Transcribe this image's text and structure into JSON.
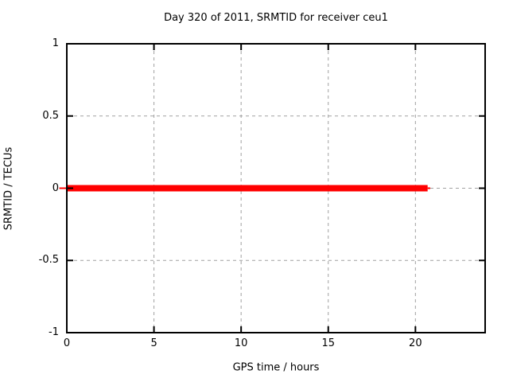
{
  "chart_data": {
    "type": "line",
    "title": "Day 320 of 2011, SRMTID for receiver ceu1",
    "xlabel": "GPS time / hours",
    "ylabel": "SRMTID / TECUs",
    "xlim": [
      0,
      24
    ],
    "ylim": [
      -1,
      1
    ],
    "xticks": {
      "values": [
        0,
        5,
        10,
        15,
        20
      ],
      "labels": [
        "0",
        "5",
        "10",
        "15",
        "20"
      ]
    },
    "yticks": {
      "values": [
        -1,
        -0.5,
        0,
        0.5,
        1
      ],
      "labels": [
        "-1",
        "-0.5",
        "0",
        "0.5",
        "1"
      ]
    },
    "grid": "dashed",
    "legend": "none",
    "colors": {
      "series": "#ff0000",
      "grid": "#a0a0a0",
      "axis": "#000000",
      "text": "#000000",
      "background": "#ffffff"
    },
    "series": [
      {
        "name": "SRMTID",
        "color": "#ff0000",
        "value": 0,
        "segments": [
          {
            "x1": -0.43,
            "x2": 0,
            "lw": 2
          },
          {
            "x1": 0,
            "x2": 20.7,
            "lw": 8
          },
          {
            "x1": 20.7,
            "x2": 20.85,
            "lw": 2
          }
        ]
      }
    ]
  }
}
